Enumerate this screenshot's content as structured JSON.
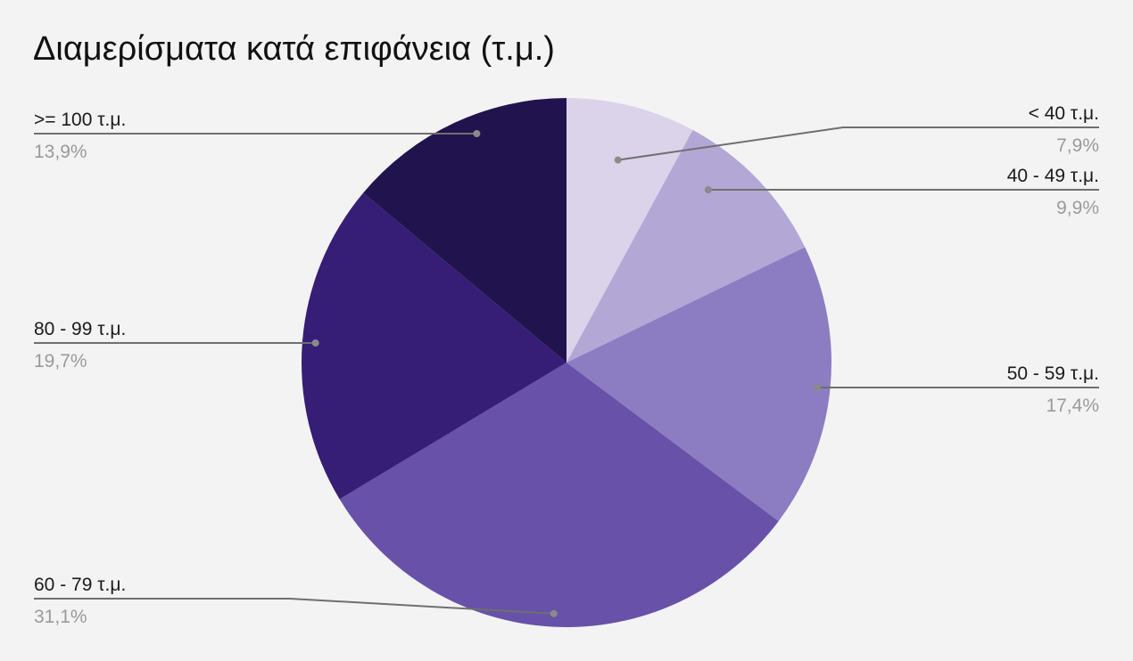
{
  "chart_data": {
    "type": "pie",
    "title": "Διαμερίσματα κατά επιφάνεια (τ.μ.)",
    "legend": "callout labels",
    "slices": [
      {
        "label": "< 40 τ.μ.",
        "value": 7.9,
        "value_label": "7,9%",
        "color": "#dad3ea"
      },
      {
        "label": "40 - 49 τ.μ.",
        "value": 9.9,
        "value_label": "9,9%",
        "color": "#b3a7d6"
      },
      {
        "label": "50 - 59 τ.μ.",
        "value": 17.4,
        "value_label": "17,4%",
        "color": "#8c7cc2"
      },
      {
        "label": "60 - 79 τ.μ.",
        "value": 31.1,
        "value_label": "31,1%",
        "color": "#6851a9"
      },
      {
        "label": "80 - 99 τ.μ.",
        "value": 19.7,
        "value_label": "19,7%",
        "color": "#361d76"
      },
      {
        "label": ">= 100 τ.μ.",
        "value": 13.9,
        "value_label": "13,9%",
        "color": "#21144e"
      }
    ]
  }
}
